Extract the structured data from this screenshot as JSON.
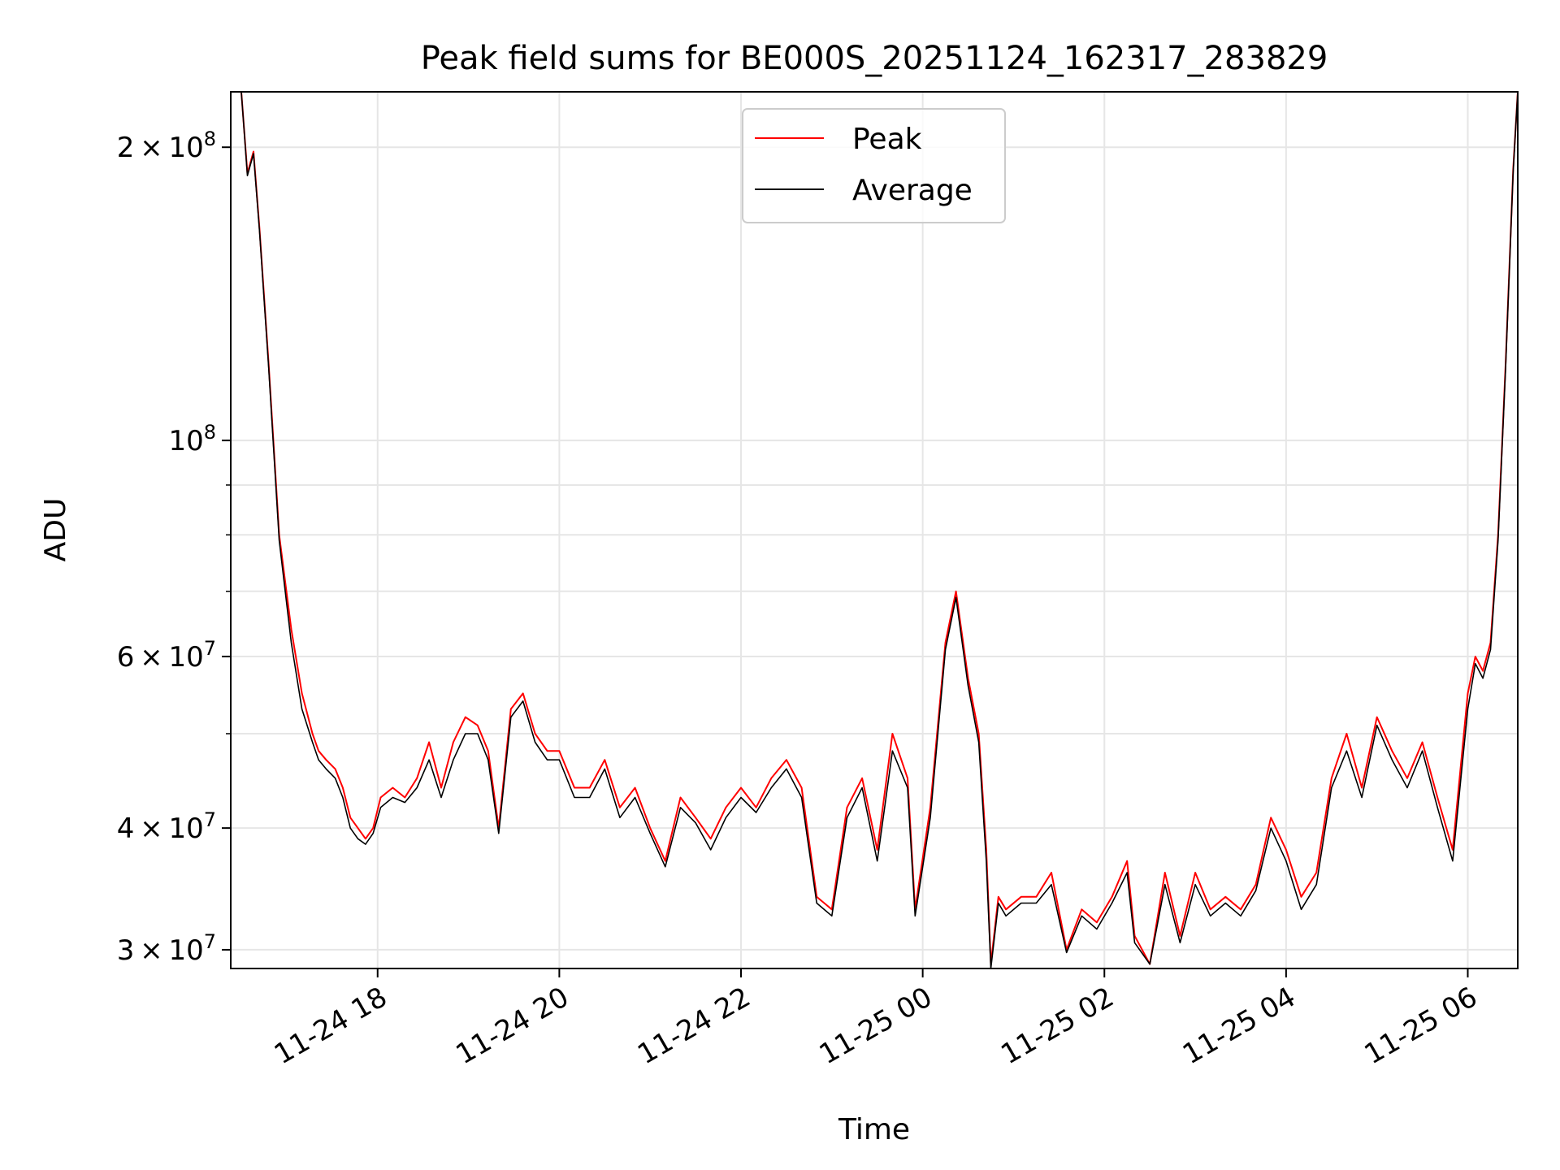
{
  "chart_data": {
    "type": "line",
    "title": "Peak field sums for BE000S_20251124_162317_283829",
    "xlabel": "Time",
    "ylabel": "ADU",
    "yscale": "log",
    "ylim": [
      28700000,
      228000000
    ],
    "xlim": [
      "2025-11-24 16:23",
      "2025-11-25 06:33"
    ],
    "grid": true,
    "legend_position": "top-center",
    "x_ticks": [
      "11-24 18",
      "11-24 20",
      "11-24 22",
      "11-25 00",
      "11-25 02",
      "11-25 04",
      "11-25 06"
    ],
    "x_tick_times": [
      "2025-11-24 18:00",
      "2025-11-24 20:00",
      "2025-11-24 22:00",
      "2025-11-25 00:00",
      "2025-11-25 02:00",
      "2025-11-25 04:00",
      "2025-11-25 06:00"
    ],
    "y_ticks": [
      {
        "value": 30000000,
        "mant": "3",
        "exp": "7"
      },
      {
        "value": 40000000,
        "mant": "4",
        "exp": "7"
      },
      {
        "value": 60000000,
        "mant": "6",
        "exp": "7"
      },
      {
        "value": 100000000,
        "mant": "",
        "exp": "8"
      },
      {
        "value": 200000000,
        "mant": "2",
        "exp": "8"
      }
    ],
    "times_sign": "×",
    "tick_base": "10",
    "series": [
      {
        "name": "Peak",
        "color": "#ff0000",
        "x": [
          "2025-11-24 16:23",
          "2025-11-24 16:30",
          "2025-11-24 16:34",
          "2025-11-24 16:38",
          "2025-11-24 16:42",
          "2025-11-24 16:48",
          "2025-11-24 16:55",
          "2025-11-24 17:03",
          "2025-11-24 17:10",
          "2025-11-24 17:17",
          "2025-11-24 17:21",
          "2025-11-24 17:26",
          "2025-11-24 17:32",
          "2025-11-24 17:37",
          "2025-11-24 17:42",
          "2025-11-24 17:47",
          "2025-11-24 17:52",
          "2025-11-24 17:57",
          "2025-11-24 18:02",
          "2025-11-24 18:10",
          "2025-11-24 18:18",
          "2025-11-24 18:26",
          "2025-11-24 18:34",
          "2025-11-24 18:42",
          "2025-11-24 18:50",
          "2025-11-24 18:58",
          "2025-11-24 19:06",
          "2025-11-24 19:13",
          "2025-11-24 19:20",
          "2025-11-24 19:28",
          "2025-11-24 19:36",
          "2025-11-24 19:44",
          "2025-11-24 19:52",
          "2025-11-24 20:00",
          "2025-11-24 20:10",
          "2025-11-24 20:20",
          "2025-11-24 20:30",
          "2025-11-24 20:40",
          "2025-11-24 20:50",
          "2025-11-24 21:00",
          "2025-11-24 21:10",
          "2025-11-24 21:20",
          "2025-11-24 21:30",
          "2025-11-24 21:40",
          "2025-11-24 21:50",
          "2025-11-24 22:00",
          "2025-11-24 22:10",
          "2025-11-24 22:20",
          "2025-11-24 22:30",
          "2025-11-24 22:40",
          "2025-11-24 22:50",
          "2025-11-24 23:00",
          "2025-11-24 23:10",
          "2025-11-24 23:20",
          "2025-11-24 23:30",
          "2025-11-24 23:40",
          "2025-11-24 23:50",
          "2025-11-24 23:55",
          "2025-11-25 00:05",
          "2025-11-25 00:15",
          "2025-11-25 00:22",
          "2025-11-25 00:30",
          "2025-11-25 00:37",
          "2025-11-25 00:42",
          "2025-11-25 00:45",
          "2025-11-25 00:50",
          "2025-11-25 00:55",
          "2025-11-25 01:05",
          "2025-11-25 01:15",
          "2025-11-25 01:25",
          "2025-11-25 01:35",
          "2025-11-25 01:45",
          "2025-11-25 01:55",
          "2025-11-25 02:05",
          "2025-11-25 02:15",
          "2025-11-25 02:20",
          "2025-11-25 02:30",
          "2025-11-25 02:40",
          "2025-11-25 02:50",
          "2025-11-25 03:00",
          "2025-11-25 03:10",
          "2025-11-25 03:20",
          "2025-11-25 03:30",
          "2025-11-25 03:40",
          "2025-11-25 03:50",
          "2025-11-25 04:00",
          "2025-11-25 04:10",
          "2025-11-25 04:20",
          "2025-11-25 04:30",
          "2025-11-25 04:40",
          "2025-11-25 04:50",
          "2025-11-25 05:00",
          "2025-11-25 05:10",
          "2025-11-25 05:20",
          "2025-11-25 05:30",
          "2025-11-25 05:40",
          "2025-11-25 05:50",
          "2025-11-25 06:00",
          "2025-11-25 06:05",
          "2025-11-25 06:10",
          "2025-11-25 06:15",
          "2025-11-25 06:20",
          "2025-11-25 06:25",
          "2025-11-25 06:30",
          "2025-11-25 06:33"
        ],
        "y": [
          228000000,
          228000000,
          188000000,
          198000000,
          165000000,
          120000000,
          80000000,
          64000000,
          55000000,
          50000000,
          48000000,
          47000000,
          46000000,
          44000000,
          41000000,
          40000000,
          39000000,
          40000000,
          43000000,
          44000000,
          43000000,
          45000000,
          49000000,
          44000000,
          49000000,
          52000000,
          51000000,
          48000000,
          40000000,
          53000000,
          55000000,
          50000000,
          48000000,
          48000000,
          44000000,
          44000000,
          47000000,
          42000000,
          44000000,
          40000000,
          37000000,
          43000000,
          41000000,
          39000000,
          42000000,
          44000000,
          42000000,
          45000000,
          47000000,
          44000000,
          34000000,
          33000000,
          42000000,
          45000000,
          38000000,
          50000000,
          45000000,
          33000000,
          42000000,
          62000000,
          70000000,
          57000000,
          50000000,
          38000000,
          29000000,
          34000000,
          33000000,
          34000000,
          34000000,
          36000000,
          30000000,
          33000000,
          32000000,
          34000000,
          37000000,
          31000000,
          29000000,
          36000000,
          31000000,
          36000000,
          33000000,
          34000000,
          33000000,
          35000000,
          41000000,
          38000000,
          34000000,
          36000000,
          45000000,
          50000000,
          44000000,
          52000000,
          48000000,
          45000000,
          49000000,
          43000000,
          38000000,
          55000000,
          60000000,
          58000000,
          62000000,
          80000000,
          120000000,
          190000000,
          228000000
        ]
      },
      {
        "name": "Average",
        "color": "#000000",
        "x": [
          "2025-11-24 16:23",
          "2025-11-24 16:30",
          "2025-11-24 16:34",
          "2025-11-24 16:38",
          "2025-11-24 16:42",
          "2025-11-24 16:48",
          "2025-11-24 16:55",
          "2025-11-24 17:03",
          "2025-11-24 17:10",
          "2025-11-24 17:17",
          "2025-11-24 17:21",
          "2025-11-24 17:26",
          "2025-11-24 17:32",
          "2025-11-24 17:37",
          "2025-11-24 17:42",
          "2025-11-24 17:47",
          "2025-11-24 17:52",
          "2025-11-24 17:57",
          "2025-11-24 18:02",
          "2025-11-24 18:10",
          "2025-11-24 18:18",
          "2025-11-24 18:26",
          "2025-11-24 18:34",
          "2025-11-24 18:42",
          "2025-11-24 18:50",
          "2025-11-24 18:58",
          "2025-11-24 19:06",
          "2025-11-24 19:13",
          "2025-11-24 19:20",
          "2025-11-24 19:28",
          "2025-11-24 19:36",
          "2025-11-24 19:44",
          "2025-11-24 19:52",
          "2025-11-24 20:00",
          "2025-11-24 20:10",
          "2025-11-24 20:20",
          "2025-11-24 20:30",
          "2025-11-24 20:40",
          "2025-11-24 20:50",
          "2025-11-24 21:00",
          "2025-11-24 21:10",
          "2025-11-24 21:20",
          "2025-11-24 21:30",
          "2025-11-24 21:40",
          "2025-11-24 21:50",
          "2025-11-24 22:00",
          "2025-11-24 22:10",
          "2025-11-24 22:20",
          "2025-11-24 22:30",
          "2025-11-24 22:40",
          "2025-11-24 22:50",
          "2025-11-24 23:00",
          "2025-11-24 23:10",
          "2025-11-24 23:20",
          "2025-11-24 23:30",
          "2025-11-24 23:40",
          "2025-11-24 23:50",
          "2025-11-24 23:55",
          "2025-11-25 00:05",
          "2025-11-25 00:15",
          "2025-11-25 00:22",
          "2025-11-25 00:30",
          "2025-11-25 00:37",
          "2025-11-25 00:42",
          "2025-11-25 00:45",
          "2025-11-25 00:50",
          "2025-11-25 00:55",
          "2025-11-25 01:05",
          "2025-11-25 01:15",
          "2025-11-25 01:25",
          "2025-11-25 01:35",
          "2025-11-25 01:45",
          "2025-11-25 01:55",
          "2025-11-25 02:05",
          "2025-11-25 02:15",
          "2025-11-25 02:20",
          "2025-11-25 02:30",
          "2025-11-25 02:40",
          "2025-11-25 02:50",
          "2025-11-25 03:00",
          "2025-11-25 03:10",
          "2025-11-25 03:20",
          "2025-11-25 03:30",
          "2025-11-25 03:40",
          "2025-11-25 03:50",
          "2025-11-25 04:00",
          "2025-11-25 04:10",
          "2025-11-25 04:20",
          "2025-11-25 04:30",
          "2025-11-25 04:40",
          "2025-11-25 04:50",
          "2025-11-25 05:00",
          "2025-11-25 05:10",
          "2025-11-25 05:20",
          "2025-11-25 05:30",
          "2025-11-25 05:40",
          "2025-11-25 05:50",
          "2025-11-25 06:00",
          "2025-11-25 06:05",
          "2025-11-25 06:10",
          "2025-11-25 06:15",
          "2025-11-25 06:20",
          "2025-11-25 06:25",
          "2025-11-25 06:30",
          "2025-11-25 06:33"
        ],
        "y": [
          228000000,
          228000000,
          187000000,
          197000000,
          164000000,
          119000000,
          79000000,
          62000000,
          53000000,
          49000000,
          47000000,
          46000000,
          45000000,
          43000000,
          40000000,
          39000000,
          38500000,
          39500000,
          42000000,
          43000000,
          42500000,
          44000000,
          47000000,
          43000000,
          47000000,
          50000000,
          50000000,
          47000000,
          39500000,
          52000000,
          54000000,
          49000000,
          47000000,
          47000000,
          43000000,
          43000000,
          46000000,
          41000000,
          43000000,
          39500000,
          36500000,
          42000000,
          40500000,
          38000000,
          41000000,
          43000000,
          41500000,
          44000000,
          46000000,
          43000000,
          33500000,
          32500000,
          41000000,
          44000000,
          37000000,
          48000000,
          44000000,
          32500000,
          41000000,
          61000000,
          69000000,
          56000000,
          49000000,
          37000000,
          28700000,
          33500000,
          32500000,
          33500000,
          33500000,
          35000000,
          29800000,
          32500000,
          31500000,
          33500000,
          36000000,
          30500000,
          29000000,
          35000000,
          30500000,
          35000000,
          32500000,
          33500000,
          32500000,
          34500000,
          40000000,
          37000000,
          33000000,
          35000000,
          44000000,
          48000000,
          43000000,
          51000000,
          47000000,
          44000000,
          48000000,
          42000000,
          37000000,
          53000000,
          59000000,
          57000000,
          61000000,
          79000000,
          119000000,
          189000000,
          228000000
        ]
      }
    ]
  }
}
